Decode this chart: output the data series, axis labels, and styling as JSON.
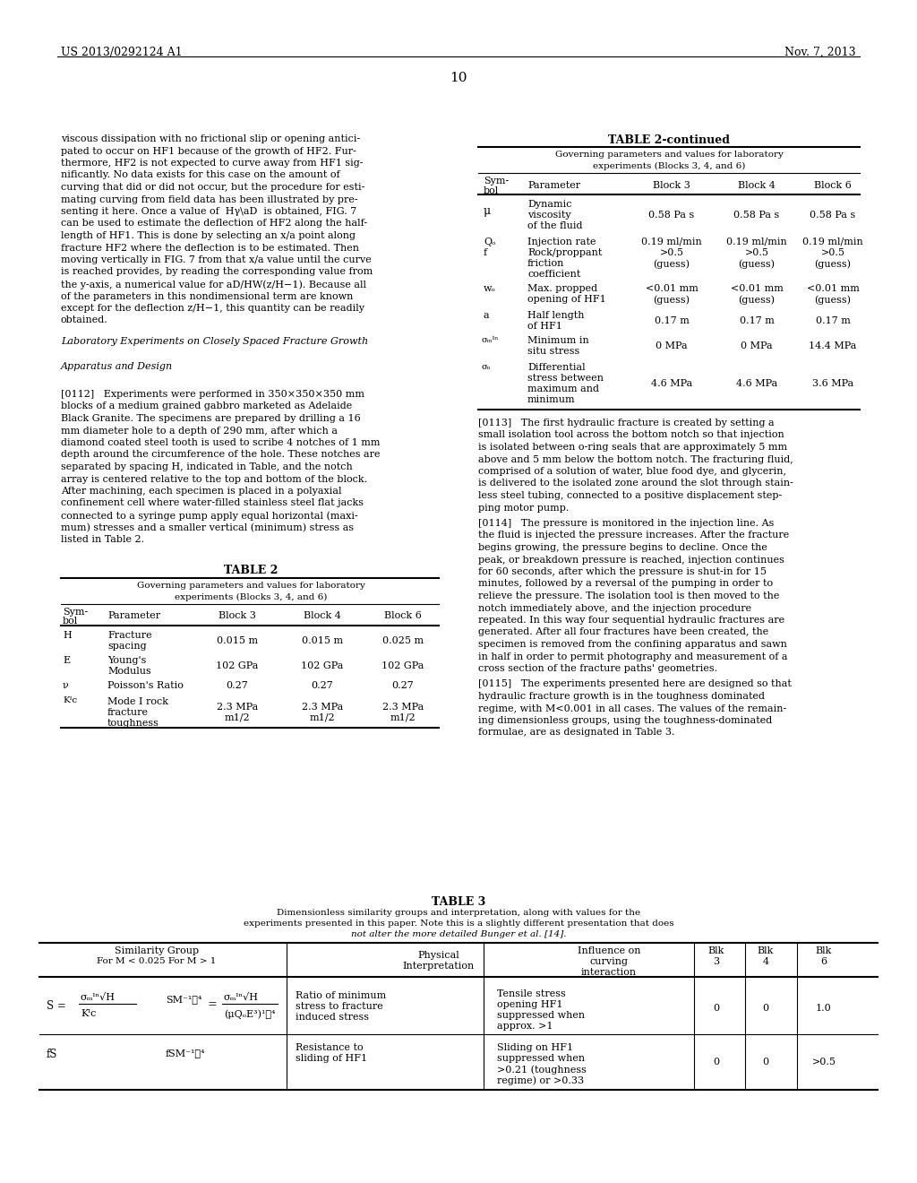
{
  "bg_color": "#ffffff",
  "text_color": "#000000",
  "page_num": "10",
  "header_left": "US 2013/0292124 A1",
  "header_right": "Nov. 7, 2013"
}
